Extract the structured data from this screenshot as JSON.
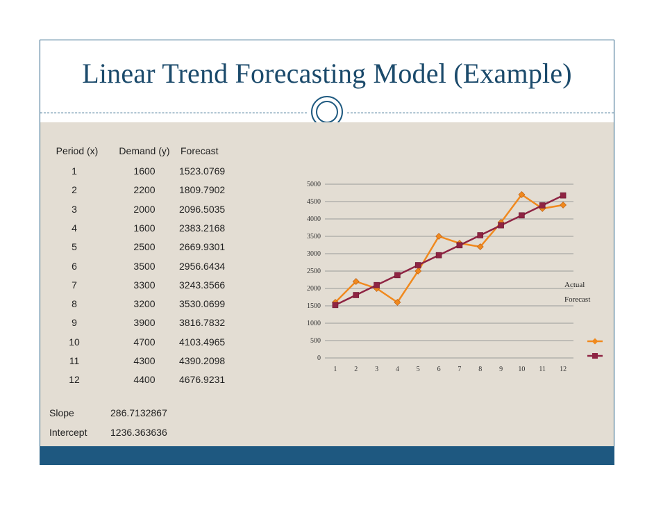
{
  "title": "Linear Trend Forecasting Model (Example)",
  "table": {
    "headers": [
      "Period (x)",
      "Demand (y)",
      "Forecast"
    ],
    "rows": [
      [
        "1",
        "1600",
        "1523.0769"
      ],
      [
        "2",
        "2200",
        "1809.7902"
      ],
      [
        "3",
        "2000",
        "2096.5035"
      ],
      [
        "4",
        "1600",
        "2383.2168"
      ],
      [
        "5",
        "2500",
        "2669.9301"
      ],
      [
        "6",
        "3500",
        "2956.6434"
      ],
      [
        "7",
        "3300",
        "3243.3566"
      ],
      [
        "8",
        "3200",
        "3530.0699"
      ],
      [
        "9",
        "3900",
        "3816.7832"
      ],
      [
        "10",
        "4700",
        "4103.4965"
      ],
      [
        "11",
        "4300",
        "4390.2098"
      ],
      [
        "12",
        "4400",
        "4676.9231"
      ]
    ]
  },
  "stats": {
    "slope_label": "Slope",
    "slope_value": "286.7132867",
    "intercept_label": "Intercept",
    "intercept_value": "1236.363636"
  },
  "colors": {
    "title": "#1b4a6b",
    "accent": "#1e5880",
    "content_bg": "#e3ddd3",
    "actual": "#f0891e",
    "forecast": "#8e2443"
  },
  "chart_data": {
    "type": "line",
    "title": "",
    "xlabel": "",
    "ylabel": "",
    "x": [
      1,
      2,
      3,
      4,
      5,
      6,
      7,
      8,
      9,
      10,
      11,
      12
    ],
    "ylim": [
      0,
      5000
    ],
    "yticks": [
      0,
      500,
      1000,
      1500,
      2000,
      2500,
      3000,
      3500,
      4000,
      4500,
      5000
    ],
    "grid": true,
    "legend_position": "right",
    "series": [
      {
        "name": "Actual",
        "marker": "diamond",
        "color": "#f0891e",
        "values": [
          1600,
          2200,
          2000,
          1600,
          2500,
          3500,
          3300,
          3200,
          3900,
          4700,
          4300,
          4400
        ]
      },
      {
        "name": "Forecast",
        "marker": "square",
        "color": "#8e2443",
        "values": [
          1523.0769,
          1809.7902,
          2096.5035,
          2383.2168,
          2669.9301,
          2956.6434,
          3243.3566,
          3530.0699,
          3816.7832,
          4103.4965,
          4390.2098,
          4676.9231
        ]
      }
    ]
  }
}
